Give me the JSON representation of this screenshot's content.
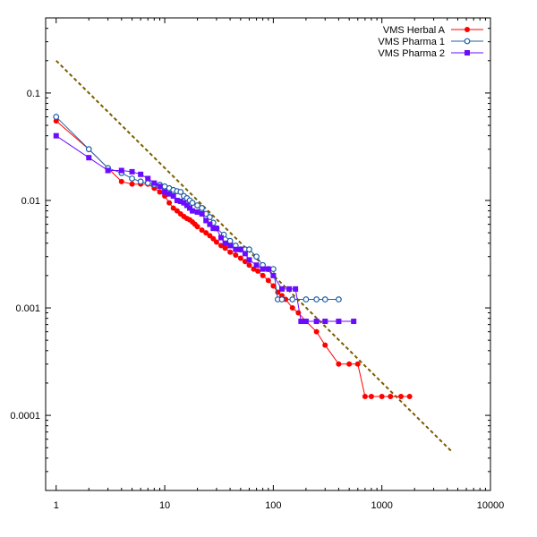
{
  "chart_data": {
    "type": "scatter",
    "title": "",
    "xlabel": "",
    "ylabel": "",
    "x_scale": "log",
    "y_scale": "log",
    "xlim": [
      0.8,
      10000
    ],
    "ylim": [
      2e-05,
      0.5
    ],
    "grid": false,
    "legend_position": "top-right",
    "x_ticks": [
      {
        "value": 1,
        "label": "1"
      },
      {
        "value": 10,
        "label": "10"
      },
      {
        "value": 100,
        "label": "100"
      },
      {
        "value": 1000,
        "label": "1000"
      },
      {
        "value": 10000,
        "label": "10000"
      }
    ],
    "y_ticks": [
      {
        "value": 0.1,
        "label": "0.1"
      },
      {
        "value": 0.01,
        "label": "0.01"
      },
      {
        "value": 0.001,
        "label": "0.001"
      },
      {
        "value": 0.0001,
        "label": "0.0001"
      }
    ],
    "series": [
      {
        "name": "VMS Herbal A",
        "color": "#ff0000",
        "marker": "filled-circle",
        "x": [
          1,
          2,
          3,
          4,
          5,
          6,
          7,
          8,
          9,
          10,
          11,
          12,
          13,
          14,
          15,
          16,
          17,
          18,
          19,
          20,
          22,
          24,
          26,
          28,
          30,
          33,
          36,
          40,
          45,
          50,
          55,
          60,
          66,
          72,
          80,
          90,
          100,
          110,
          120,
          130,
          150,
          170,
          200,
          250,
          300,
          400,
          500,
          600,
          700,
          800,
          1000,
          1200,
          1500,
          1800
        ],
        "y": [
          0.055,
          0.03,
          0.02,
          0.015,
          0.0142,
          0.0142,
          0.0142,
          0.013,
          0.012,
          0.011,
          0.0095,
          0.0085,
          0.008,
          0.0075,
          0.0071,
          0.0068,
          0.0066,
          0.0063,
          0.006,
          0.0057,
          0.0053,
          0.005,
          0.0047,
          0.0044,
          0.0041,
          0.0038,
          0.0036,
          0.0033,
          0.0031,
          0.0029,
          0.0027,
          0.0025,
          0.0023,
          0.0022,
          0.002,
          0.0018,
          0.0016,
          0.0014,
          0.0013,
          0.0012,
          0.001,
          0.0009,
          0.00075,
          0.0006,
          0.00045,
          0.0003,
          0.0003,
          0.0003,
          0.00015,
          0.00015,
          0.00015,
          0.00015,
          0.00015,
          0.00015
        ]
      },
      {
        "name": "VMS Pharma 1",
        "color": "#1f5fa8",
        "marker": "open-circle",
        "x": [
          1,
          2,
          3,
          4,
          5,
          6,
          7,
          8,
          9,
          10,
          11,
          12,
          13,
          14,
          15,
          16,
          17,
          18,
          20,
          22,
          24,
          26,
          28,
          30,
          35,
          40,
          45,
          50,
          55,
          60,
          70,
          80,
          90,
          100,
          110,
          120,
          150,
          200,
          250,
          300,
          400
        ],
        "y": [
          0.06,
          0.03,
          0.02,
          0.018,
          0.016,
          0.015,
          0.0145,
          0.014,
          0.014,
          0.0135,
          0.013,
          0.0125,
          0.0122,
          0.012,
          0.011,
          0.0105,
          0.01,
          0.0095,
          0.009,
          0.0085,
          0.0075,
          0.007,
          0.0062,
          0.0055,
          0.0048,
          0.0042,
          0.0038,
          0.0035,
          0.0035,
          0.0035,
          0.003,
          0.0025,
          0.0023,
          0.0023,
          0.0012,
          0.0012,
          0.0012,
          0.0012,
          0.0012,
          0.0012,
          0.0012
        ]
      },
      {
        "name": "VMS Pharma 2",
        "color": "#6a0dff",
        "marker": "filled-square",
        "x": [
          1,
          2,
          3,
          4,
          5,
          6,
          7,
          8,
          9,
          10,
          11,
          12,
          13,
          14,
          15,
          16,
          17,
          18,
          20,
          22,
          24,
          26,
          28,
          30,
          33,
          36,
          40,
          45,
          50,
          55,
          60,
          70,
          80,
          90,
          100,
          120,
          140,
          160,
          180,
          200,
          250,
          300,
          400,
          550
        ],
        "y": [
          0.04,
          0.025,
          0.019,
          0.019,
          0.0185,
          0.0175,
          0.016,
          0.0145,
          0.0135,
          0.012,
          0.0115,
          0.011,
          0.01,
          0.0098,
          0.0095,
          0.009,
          0.0085,
          0.008,
          0.0078,
          0.0075,
          0.0065,
          0.006,
          0.0055,
          0.0055,
          0.0045,
          0.004,
          0.0038,
          0.0035,
          0.0035,
          0.0032,
          0.0028,
          0.0025,
          0.0023,
          0.0023,
          0.002,
          0.0015,
          0.0015,
          0.0015,
          0.00075,
          0.00075,
          0.00075,
          0.00075,
          0.00075,
          0.00075
        ]
      }
    ],
    "reference_line": {
      "color": "#7a5c00",
      "style": "dashed",
      "x": [
        1,
        4500
      ],
      "y": [
        0.2,
        4.5e-05
      ]
    }
  }
}
